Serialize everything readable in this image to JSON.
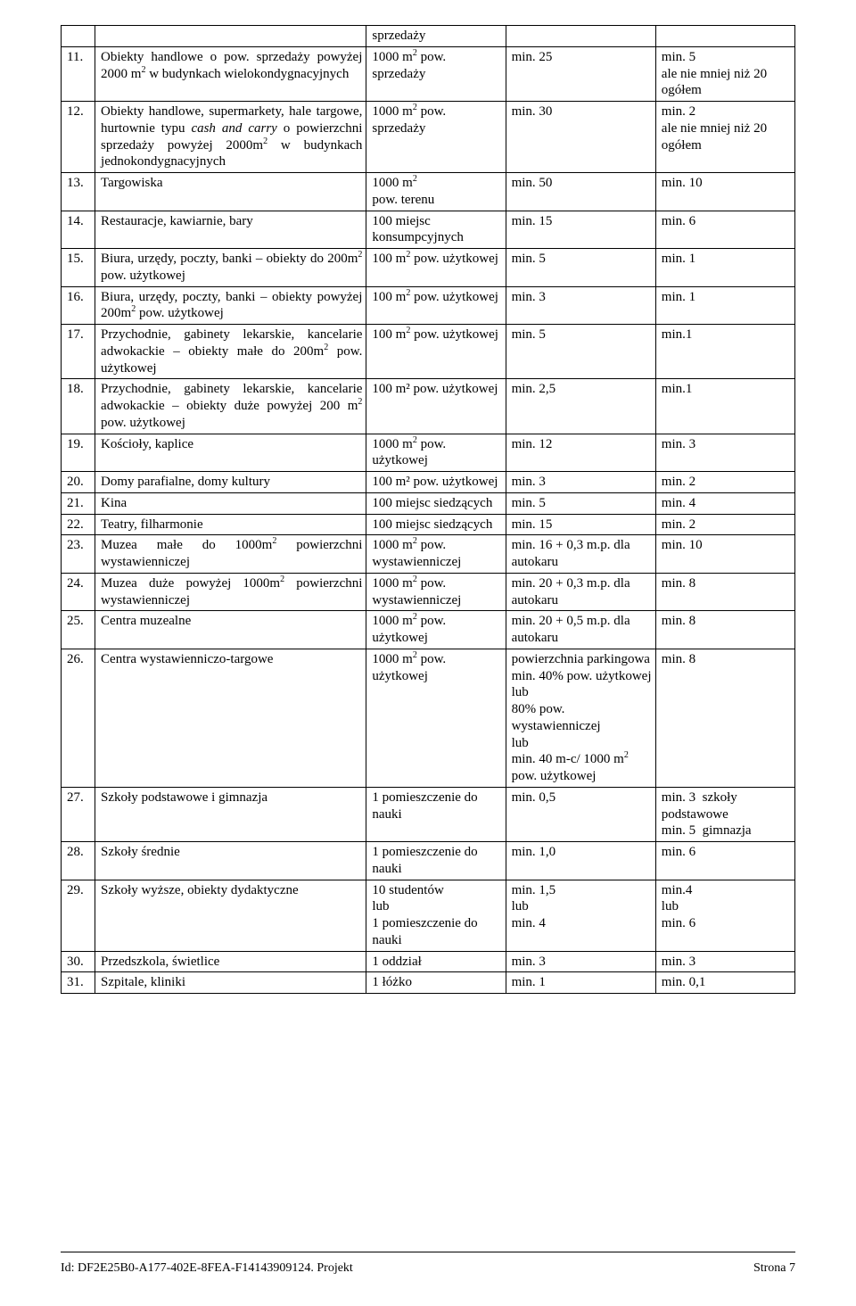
{
  "columns_width": [
    38,
    304,
    156,
    168,
    156
  ],
  "rows": [
    {
      "c1": "",
      "c2": "",
      "c3": "sprzedaży",
      "c4": "",
      "c5": ""
    },
    {
      "c1": "11.",
      "c2": "Obiekty handlowe o pow. sprzedaży powyżej 2000 m<sup>2</sup> w budynkach wielokondygnacyjnych",
      "c3": "1000 m<sup>2</sup> pow. sprzedaży",
      "c4": "min. 25",
      "c5": "min. 5<br>ale nie mniej niż 20 ogółem"
    },
    {
      "c1": "12.",
      "c2": "Obiekty handlowe, supermarkety, hale targowe, hurtownie typu <i>cash and carry</i> o powierzchni sprzedaży powyżej 2000m<sup>2</sup> w budynkach jednokondygnacyjnych",
      "c3": "1000 m<sup>2</sup> pow. sprzedaży",
      "c4": "min. 30",
      "c5": "min. 2<br>ale nie mniej niż 20 ogółem"
    },
    {
      "c1": "13.",
      "c2": "Targowiska",
      "c3": "1000 m<sup>2</sup><br>pow. terenu",
      "c4": "min. 50",
      "c5": "min. 10"
    },
    {
      "c1": "14.",
      "c2": "Restauracje, kawiarnie, bary",
      "c3": "100 miejsc konsumpcyjnych",
      "c4": "min. 15",
      "c5": "min. 6"
    },
    {
      "c1": "15.",
      "c2": "Biura, urzędy, poczty, banki – obiekty do 200m<sup>2</sup> pow. użytkowej",
      "c3": "100 m<sup>2</sup> pow. użytkowej",
      "c4": "min. 5",
      "c5": "min. 1"
    },
    {
      "c1": "16.",
      "c2": "Biura, urzędy, poczty, banki – obiekty powyżej 200m<sup>2</sup> pow. użytkowej",
      "c3": "100 m<sup>2</sup> pow. użytkowej",
      "c4": "min. 3",
      "c5": "min. 1"
    },
    {
      "c1": "17.",
      "c2": "Przychodnie, gabinety lekarskie, kancelarie adwokackie – obiekty małe do 200m<sup>2</sup> pow. użytkowej",
      "c3": "100 m<sup>2</sup> pow. użytkowej",
      "c4": "min. 5",
      "c5": "min.1"
    },
    {
      "c1": "18.",
      "c2": "Przychodnie, gabinety lekarskie, kancelarie adwokackie – obiekty duże powyżej 200 m<sup>2</sup> pow. użytkowej",
      "c3": "100 m² pow. użytkowej",
      "c4": "min. 2,5",
      "c5": "min.1"
    },
    {
      "c1": "19.",
      "c2": "Kościoły, kaplice",
      "c3": "1000 m<sup>2</sup> pow. użytkowej",
      "c4": "min. 12",
      "c5": "min. 3"
    },
    {
      "c1": "20.",
      "c2": "Domy parafialne, domy kultury",
      "c3": "100 m² pow. użytkowej",
      "c4": "min. 3",
      "c5": "min. 2"
    },
    {
      "c1": "21.",
      "c2": "Kina",
      "c3": "100 miejsc siedzących",
      "c4": "min. 5",
      "c5": "min. 4"
    },
    {
      "c1": "22.",
      "c2": "Teatry, filharmonie",
      "c3": "100 miejsc siedzących",
      "c4": "min. 15",
      "c5": "min. 2"
    },
    {
      "c1": "23.",
      "c2": "Muzea małe do 1000m<sup>2</sup> powierzchni wystawienniczej",
      "c3": "1000 m<sup>2</sup> pow. wystawienniczej",
      "c4": "min. 16 + 0,3 m.p. dla autokaru",
      "c5": "min. 10"
    },
    {
      "c1": "24.",
      "c2": "Muzea duże powyżej 1000m<sup>2</sup> powierzchni wystawienniczej",
      "c3": "1000 m<sup>2</sup> pow. wystawienniczej",
      "c4": "min. 20 + 0,3 m.p. dla autokaru",
      "c5": "min. 8"
    },
    {
      "c1": "25.",
      "c2": "Centra muzealne",
      "c3": "1000 m<sup>2</sup> pow. użytkowej",
      "c4": "min. 20 + 0,5 m.p. dla autokaru",
      "c5": "min. 8"
    },
    {
      "c1": "26.",
      "c2": "Centra wystawienniczo-targowe",
      "c3": "1000 m<sup>2</sup> pow. użytkowej",
      "c4": "powierzchnia parkingowa min. 40% pow. użytkowej<br>lub<br>80% pow. wystawienniczej<br>lub<br>min. 40 m-c/ 1000 m<sup>2</sup> pow. użytkowej",
      "c5": "min. 8"
    },
    {
      "c1": "27.",
      "c2": "Szkoły podstawowe i gimnazja",
      "c3": "1 pomieszczenie do nauki",
      "c4": "min. 0,5",
      "c5": "min. 3 &nbsp;szkoły podstawowe<br>min. 5&nbsp;&nbsp;gimnazja"
    },
    {
      "c1": "28.",
      "c2": "Szkoły średnie",
      "c3": "1 pomieszczenie do nauki",
      "c4": "min. 1,0",
      "c5": "min. 6"
    },
    {
      "c1": "29.",
      "c2": "Szkoły wyższe, obiekty dydaktyczne",
      "c3": "10 studentów<br>lub<br>1 pomieszczenie do nauki",
      "c4": "min. 1,5<br>lub<br>min. 4",
      "c5": "min.4<br>lub<br>min. 6"
    },
    {
      "c1": "30.",
      "c2": "Przedszkola, świetlice",
      "c3": "1 oddział",
      "c4": "min. 3",
      "c5": "min. 3"
    },
    {
      "c1": "31.",
      "c2": "Szpitale, kliniki",
      "c3": "1 łóżko",
      "c4": "min. 1",
      "c5": "min. 0,1"
    }
  ],
  "footer_left": "Id: DF2E25B0-A177-402E-8FEA-F14143909124. Projekt",
  "footer_right": "Strona 7"
}
